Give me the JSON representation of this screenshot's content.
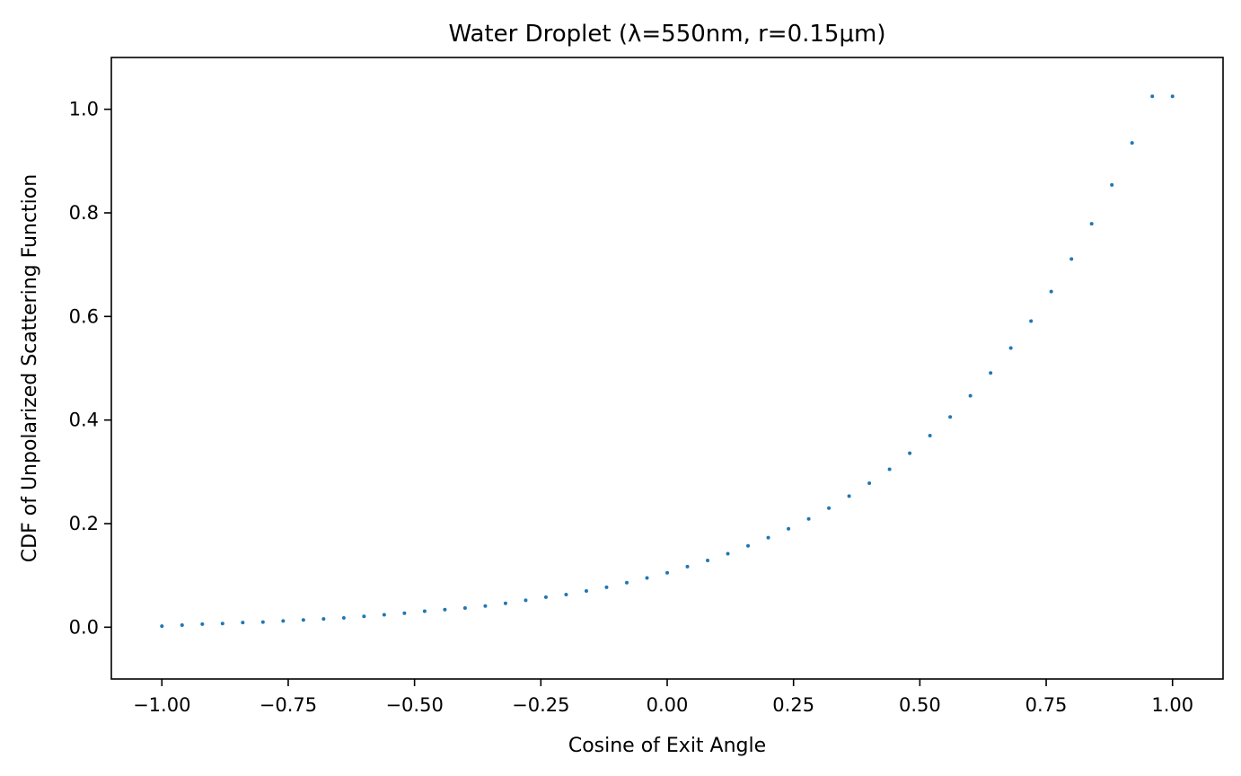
{
  "chart_data": {
    "type": "scatter",
    "title": "Water Droplet (λ=550nm, r=0.15μm)",
    "xlabel": "Cosine of Exit Angle",
    "ylabel": "CDF of Unpolarized Scattering Function",
    "xlim": [
      -1.1,
      1.1
    ],
    "ylim": [
      -0.1,
      1.1
    ],
    "x_ticks": [
      -1.0,
      -0.75,
      -0.5,
      -0.25,
      0.0,
      0.25,
      0.5,
      0.75,
      1.0
    ],
    "x_tick_labels": [
      "−1.00",
      "−0.75",
      "−0.50",
      "−0.25",
      "0.00",
      "0.25",
      "0.50",
      "0.75",
      "1.00"
    ],
    "y_ticks": [
      0.0,
      0.2,
      0.4,
      0.6,
      0.8,
      1.0
    ],
    "y_tick_labels": [
      "0.0",
      "0.2",
      "0.4",
      "0.6",
      "0.8",
      "1.0"
    ],
    "grid": false,
    "marker_color": "#1f77b4",
    "series": [
      {
        "x": [
          -1.0,
          -0.96,
          -0.92,
          -0.88,
          -0.84,
          -0.8,
          -0.76,
          -0.72,
          -0.68,
          -0.64,
          -0.6,
          -0.56,
          -0.52,
          -0.48,
          -0.44,
          -0.4,
          -0.36,
          -0.32,
          -0.28,
          -0.24,
          -0.2,
          -0.16,
          -0.12,
          -0.08,
          -0.04,
          0.0,
          0.04,
          0.08,
          0.12,
          0.16,
          0.2,
          0.24,
          0.28,
          0.32,
          0.36,
          0.4,
          0.44,
          0.48,
          0.52,
          0.56,
          0.6,
          0.64,
          0.68,
          0.72,
          0.76,
          0.8,
          0.84,
          0.88,
          0.92,
          0.96,
          1.0
        ],
        "y": [
          0.002,
          0.004,
          0.006,
          0.007,
          0.009,
          0.01,
          0.012,
          0.014,
          0.016,
          0.018,
          0.021,
          0.024,
          0.027,
          0.031,
          0.034,
          0.037,
          0.041,
          0.046,
          0.052,
          0.058,
          0.063,
          0.07,
          0.077,
          0.086,
          0.095,
          0.105,
          0.117,
          0.129,
          0.142,
          0.157,
          0.173,
          0.19,
          0.209,
          0.23,
          0.253,
          0.278,
          0.305,
          0.336,
          0.37,
          0.406,
          0.447,
          0.491,
          0.539,
          0.591,
          0.648,
          0.711,
          0.779,
          0.854,
          0.935,
          1.025,
          1.025
        ]
      }
    ]
  }
}
